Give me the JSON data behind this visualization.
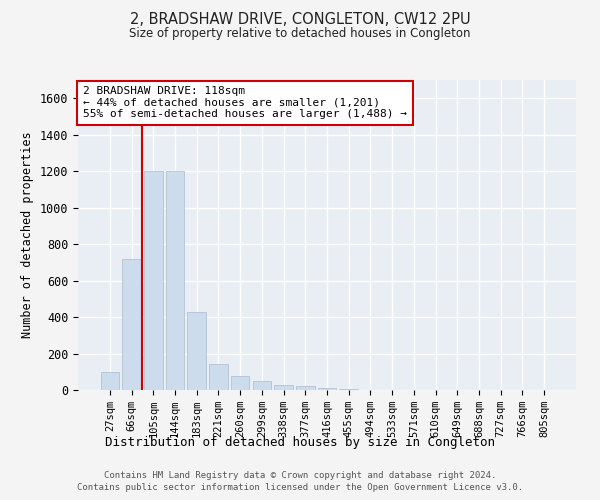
{
  "title": "2, BRADSHAW DRIVE, CONGLETON, CW12 2PU",
  "subtitle": "Size of property relative to detached houses in Congleton",
  "xlabel": "Distribution of detached houses by size in Congleton",
  "ylabel": "Number of detached properties",
  "bar_color": "#ccdcec",
  "bar_edge_color": "#aabccc",
  "background_color": "#e8eef4",
  "grid_color": "#ffffff",
  "categories": [
    "27sqm",
    "66sqm",
    "105sqm",
    "144sqm",
    "183sqm",
    "221sqm",
    "260sqm",
    "299sqm",
    "338sqm",
    "377sqm",
    "416sqm",
    "455sqm",
    "494sqm",
    "533sqm",
    "571sqm",
    "610sqm",
    "649sqm",
    "688sqm",
    "727sqm",
    "766sqm",
    "805sqm"
  ],
  "values": [
    100,
    720,
    1200,
    1200,
    430,
    140,
    75,
    50,
    30,
    20,
    10,
    3,
    2,
    1,
    1,
    1,
    0,
    0,
    0,
    0,
    0
  ],
  "ylim": [
    0,
    1700
  ],
  "yticks": [
    0,
    200,
    400,
    600,
    800,
    1000,
    1200,
    1400,
    1600
  ],
  "vline_x": 1.5,
  "annotation_title": "2 BRADSHAW DRIVE: 118sqm",
  "annotation_line1": "← 44% of detached houses are smaller (1,201)",
  "annotation_line2": "55% of semi-detached houses are larger (1,488) →",
  "vline_color": "#cc0000",
  "annotation_box_facecolor": "#ffffff",
  "annotation_box_edgecolor": "#cc0000",
  "footer_line1": "Contains HM Land Registry data © Crown copyright and database right 2024.",
  "footer_line2": "Contains public sector information licensed under the Open Government Licence v3.0."
}
